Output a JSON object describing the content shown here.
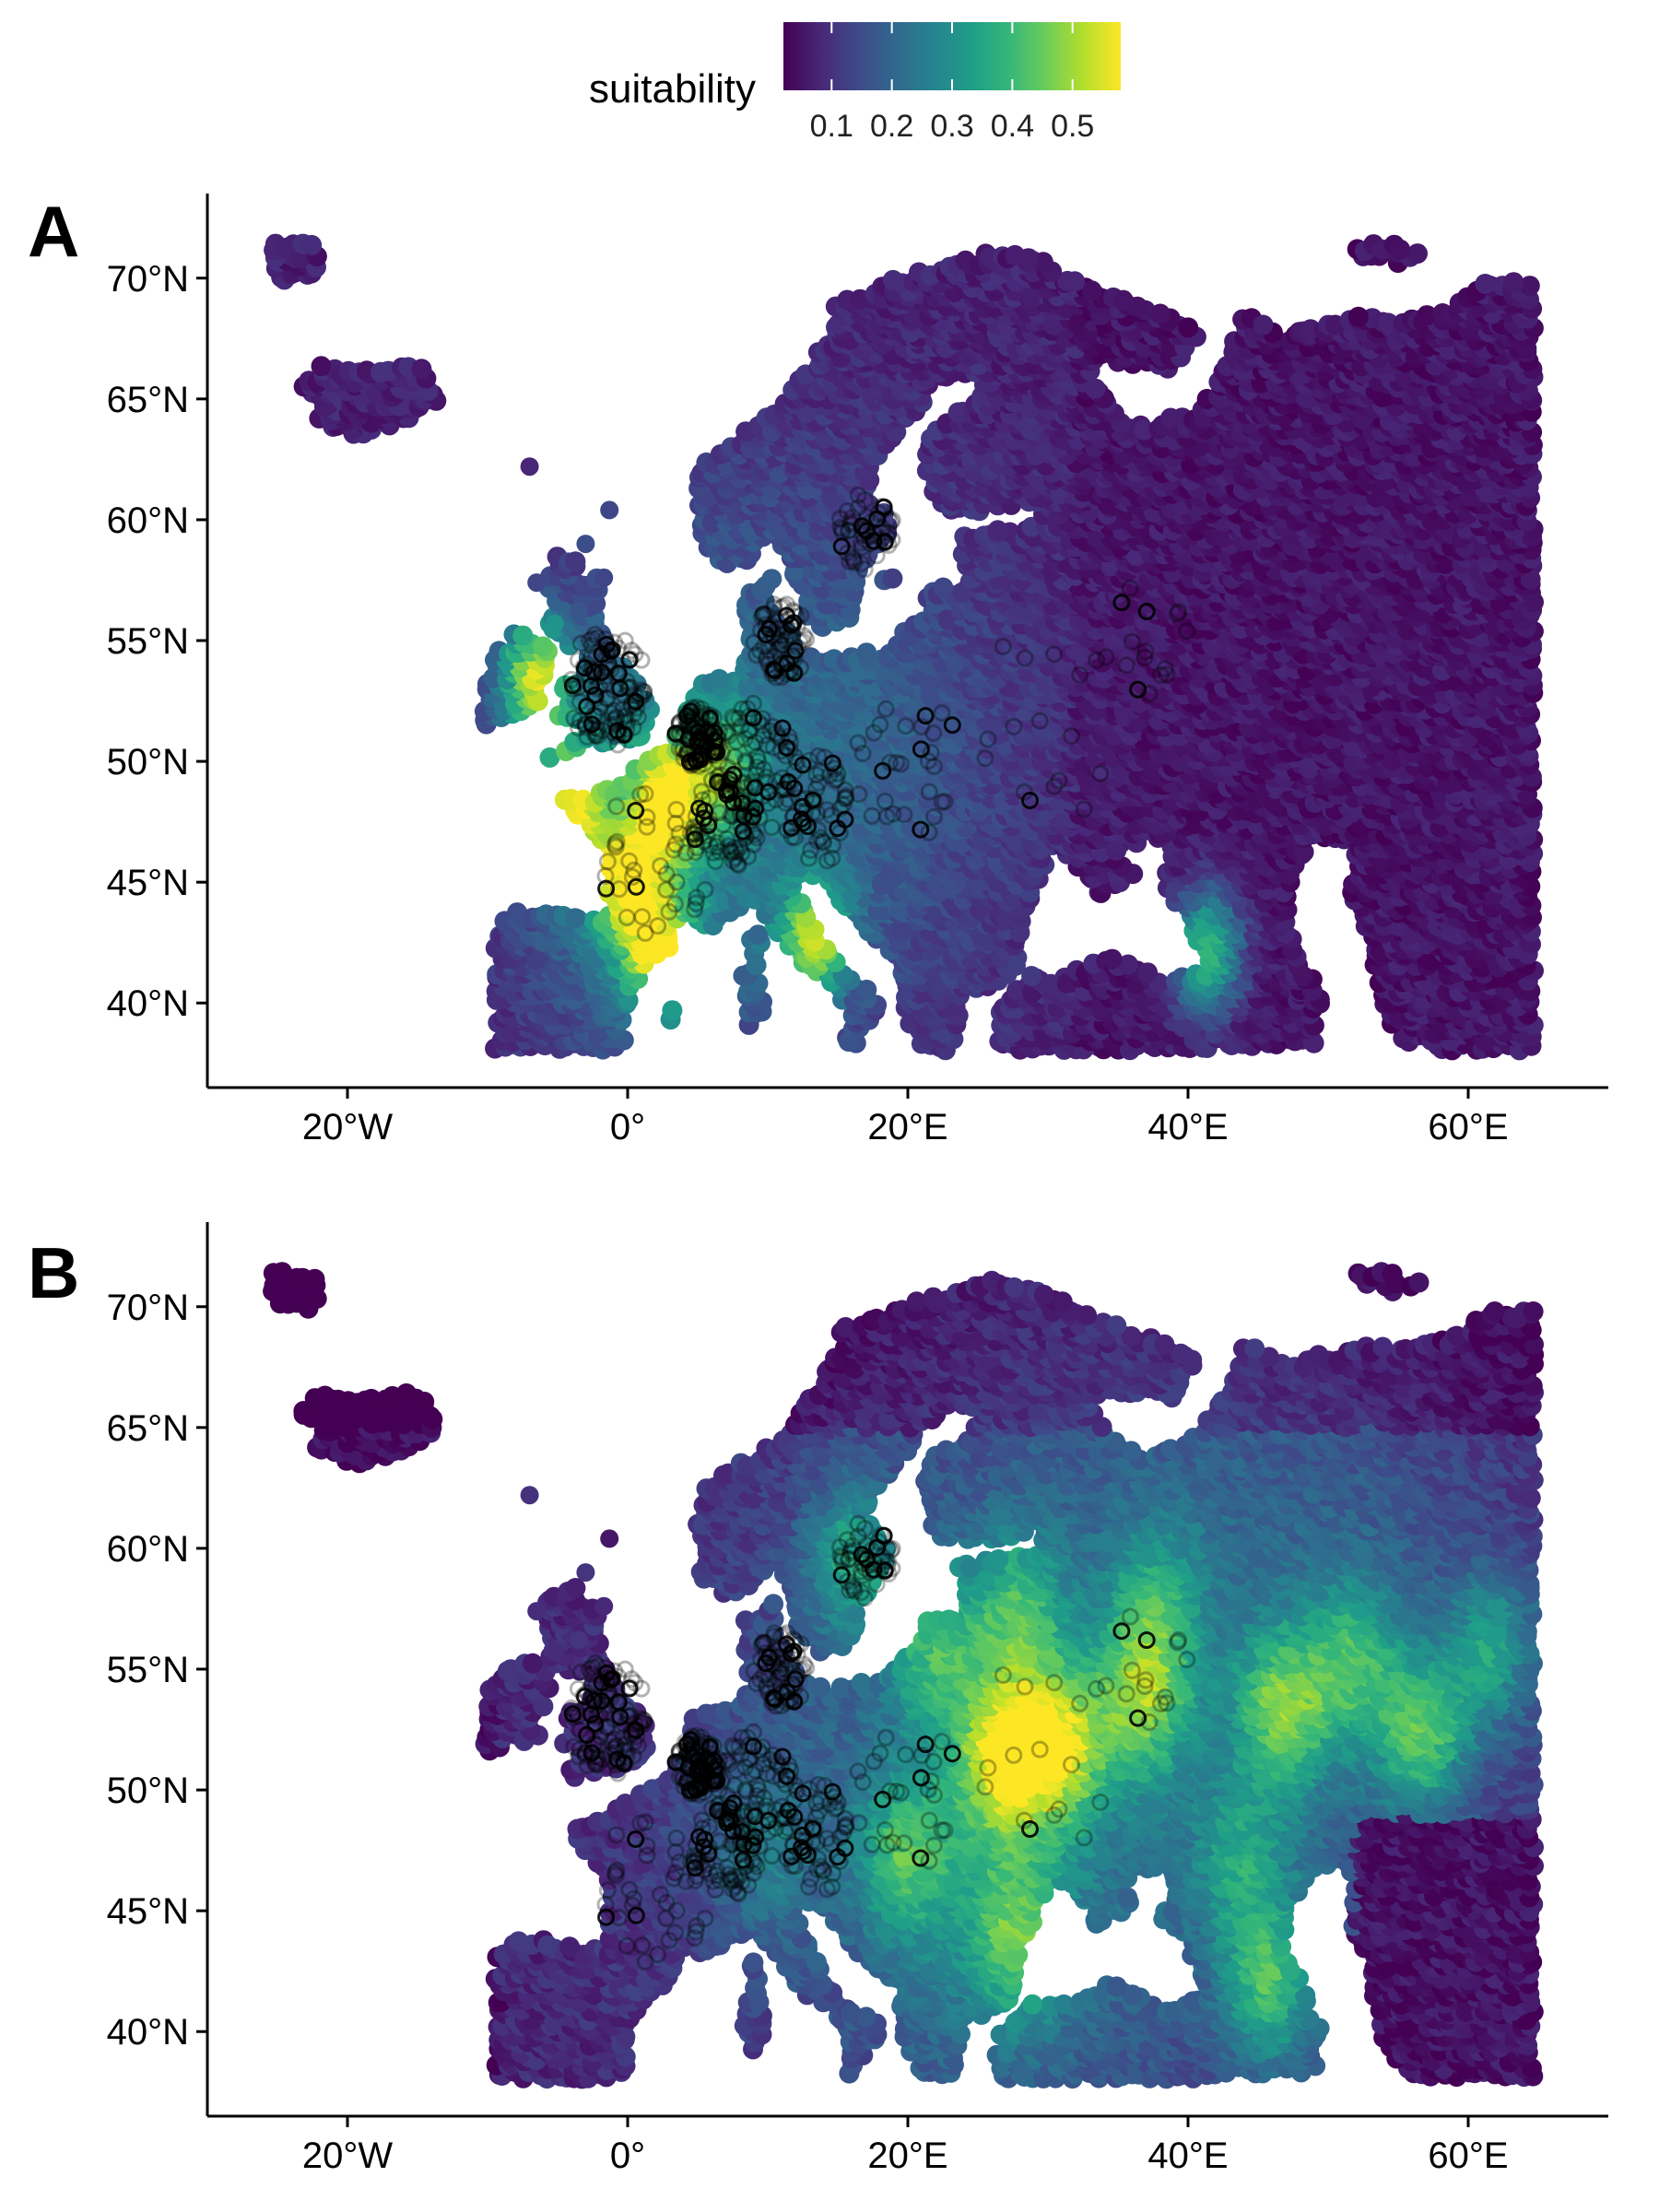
{
  "legend": {
    "title": "suitability",
    "ticks": [
      "0.1",
      "0.2",
      "0.3",
      "0.4",
      "0.5"
    ],
    "tick_values": [
      0.1,
      0.2,
      0.3,
      0.4,
      0.5
    ],
    "range": [
      0.02,
      0.58
    ],
    "colormap": [
      "#440154",
      "#482878",
      "#3e4a89",
      "#31688e",
      "#26828e",
      "#1f9e89",
      "#35b779",
      "#6dcd59",
      "#b4de2c",
      "#fde725"
    ]
  },
  "axes": {
    "lon_ticks": [
      -20,
      0,
      20,
      40,
      60
    ],
    "lon_tick_labels": [
      "20°W",
      "0°",
      "20°E",
      "40°E",
      "60°E"
    ],
    "lat_ticks": [
      40,
      45,
      50,
      55,
      60,
      65,
      70
    ],
    "lat_tick_labels": [
      "40°N",
      "45°N",
      "50°N",
      "55°N",
      "60°N",
      "65°N",
      "70°N"
    ],
    "lon_range": [
      -30,
      70
    ],
    "lat_range": [
      36.5,
      73.5
    ]
  },
  "chart_data": [
    {
      "type": "scatter",
      "panel_label": "A",
      "title": "",
      "xlabel": "",
      "ylabel": "",
      "xlim": [
        -30,
        70
      ],
      "ylim": [
        36.5,
        73.5
      ],
      "color_variable": "suitability",
      "hotspots": [
        {
          "lon": -6.5,
          "lat": 53.5,
          "value": 0.55
        },
        {
          "lon": 3,
          "lat": 48.5,
          "value": 0.5
        },
        {
          "lon": -4,
          "lat": 48.2,
          "value": 0.5
        },
        {
          "lon": 0,
          "lat": 45,
          "value": 0.45
        },
        {
          "lon": 13.5,
          "lat": 42.8,
          "value": 0.5
        },
        {
          "lon": 41.5,
          "lat": 42.3,
          "value": 0.5
        },
        {
          "lon": 2.5,
          "lat": 41.8,
          "value": 0.5
        },
        {
          "lon": 7,
          "lat": 50,
          "value": 0.35
        }
      ]
    },
    {
      "type": "scatter",
      "panel_label": "B",
      "title": "",
      "xlabel": "",
      "ylabel": "",
      "xlim": [
        -30,
        70
      ],
      "ylim": [
        36.5,
        73.5
      ],
      "color_variable": "suitability",
      "hotspots": [
        {
          "lon": 27,
          "lat": 51.5,
          "value": 0.58
        },
        {
          "lon": 31,
          "lat": 52,
          "value": 0.55
        },
        {
          "lon": 37,
          "lat": 54,
          "value": 0.5
        },
        {
          "lon": 47,
          "lat": 53.5,
          "value": 0.5
        },
        {
          "lon": 57,
          "lat": 52.5,
          "value": 0.5
        },
        {
          "lon": 52,
          "lat": 55.5,
          "value": 0.45
        },
        {
          "lon": 62,
          "lat": 56,
          "value": 0.45
        },
        {
          "lon": 22,
          "lat": 56,
          "value": 0.45
        },
        {
          "lon": 28,
          "lat": 57.5,
          "value": 0.45
        },
        {
          "lon": 20,
          "lat": 47.5,
          "value": 0.45
        },
        {
          "lon": 28,
          "lat": 44,
          "value": 0.45
        },
        {
          "lon": 46,
          "lat": 42,
          "value": 0.5
        },
        {
          "lon": 16,
          "lat": 59.8,
          "value": 0.45
        },
        {
          "lon": 38,
          "lat": 58,
          "value": 0.4
        },
        {
          "lon": 44,
          "lat": 47,
          "value": 0.4
        },
        {
          "lon": 10,
          "lat": 47.5,
          "value": 0.35
        }
      ]
    }
  ]
}
